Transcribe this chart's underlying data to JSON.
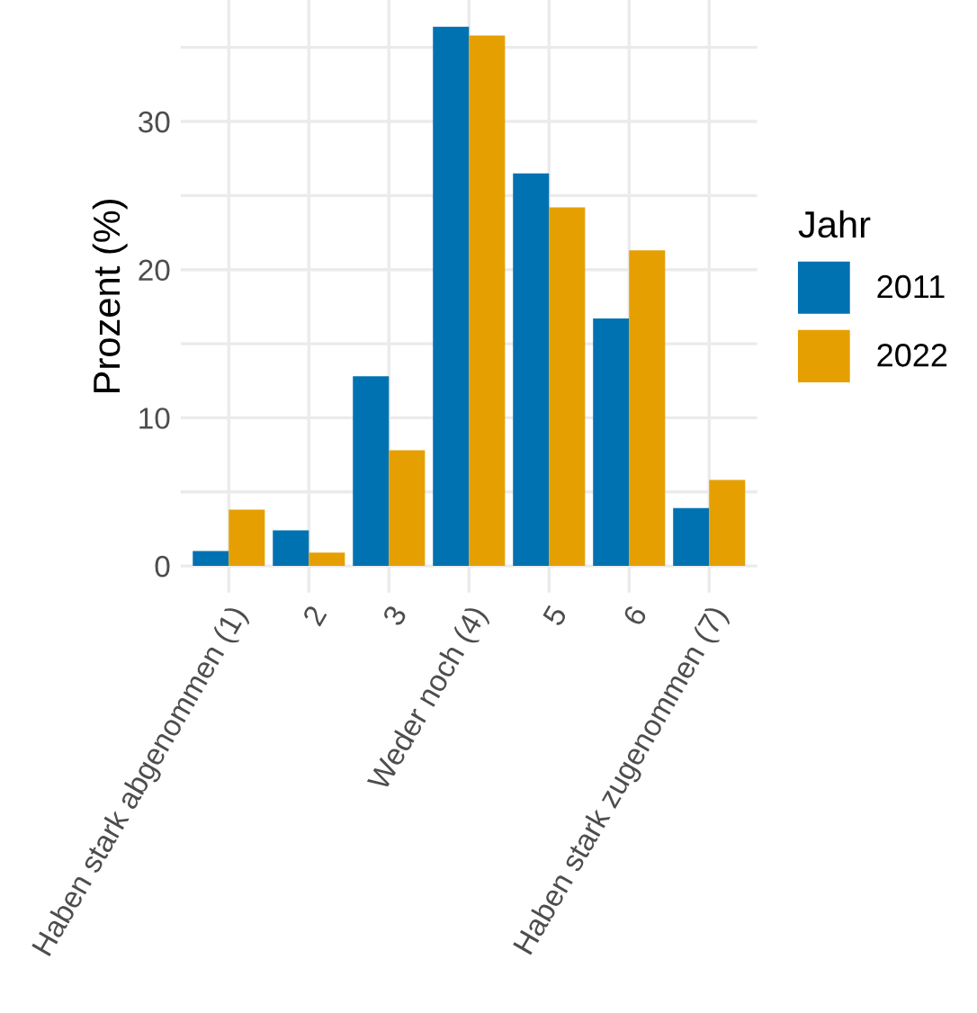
{
  "chart_data": {
    "type": "bar",
    "ylabel": "Prozent (%)",
    "legend_title": "Jahr",
    "categories": [
      "Haben stark abgenommen (1)",
      "2",
      "3",
      "Weder noch (4)",
      "5",
      "6",
      "Haben stark zugenommen (7)"
    ],
    "series": [
      {
        "name": "2011",
        "color": "#0072b2",
        "values": [
          1.0,
          2.4,
          12.8,
          36.4,
          26.5,
          16.7,
          3.9
        ]
      },
      {
        "name": "2022",
        "color": "#e69f00",
        "values": [
          3.8,
          0.9,
          7.8,
          35.8,
          24.2,
          21.3,
          5.8
        ]
      }
    ],
    "ylim": [
      -1.8,
      38.2
    ],
    "yticks": [
      0,
      {
        "value": 5,
        "label": null
      },
      10,
      {
        "value": 15,
        "label": null
      },
      20,
      {
        "value": 25,
        "label": null
      },
      30,
      {
        "value": 35,
        "label": null
      }
    ],
    "grid": true,
    "legend": "right"
  }
}
